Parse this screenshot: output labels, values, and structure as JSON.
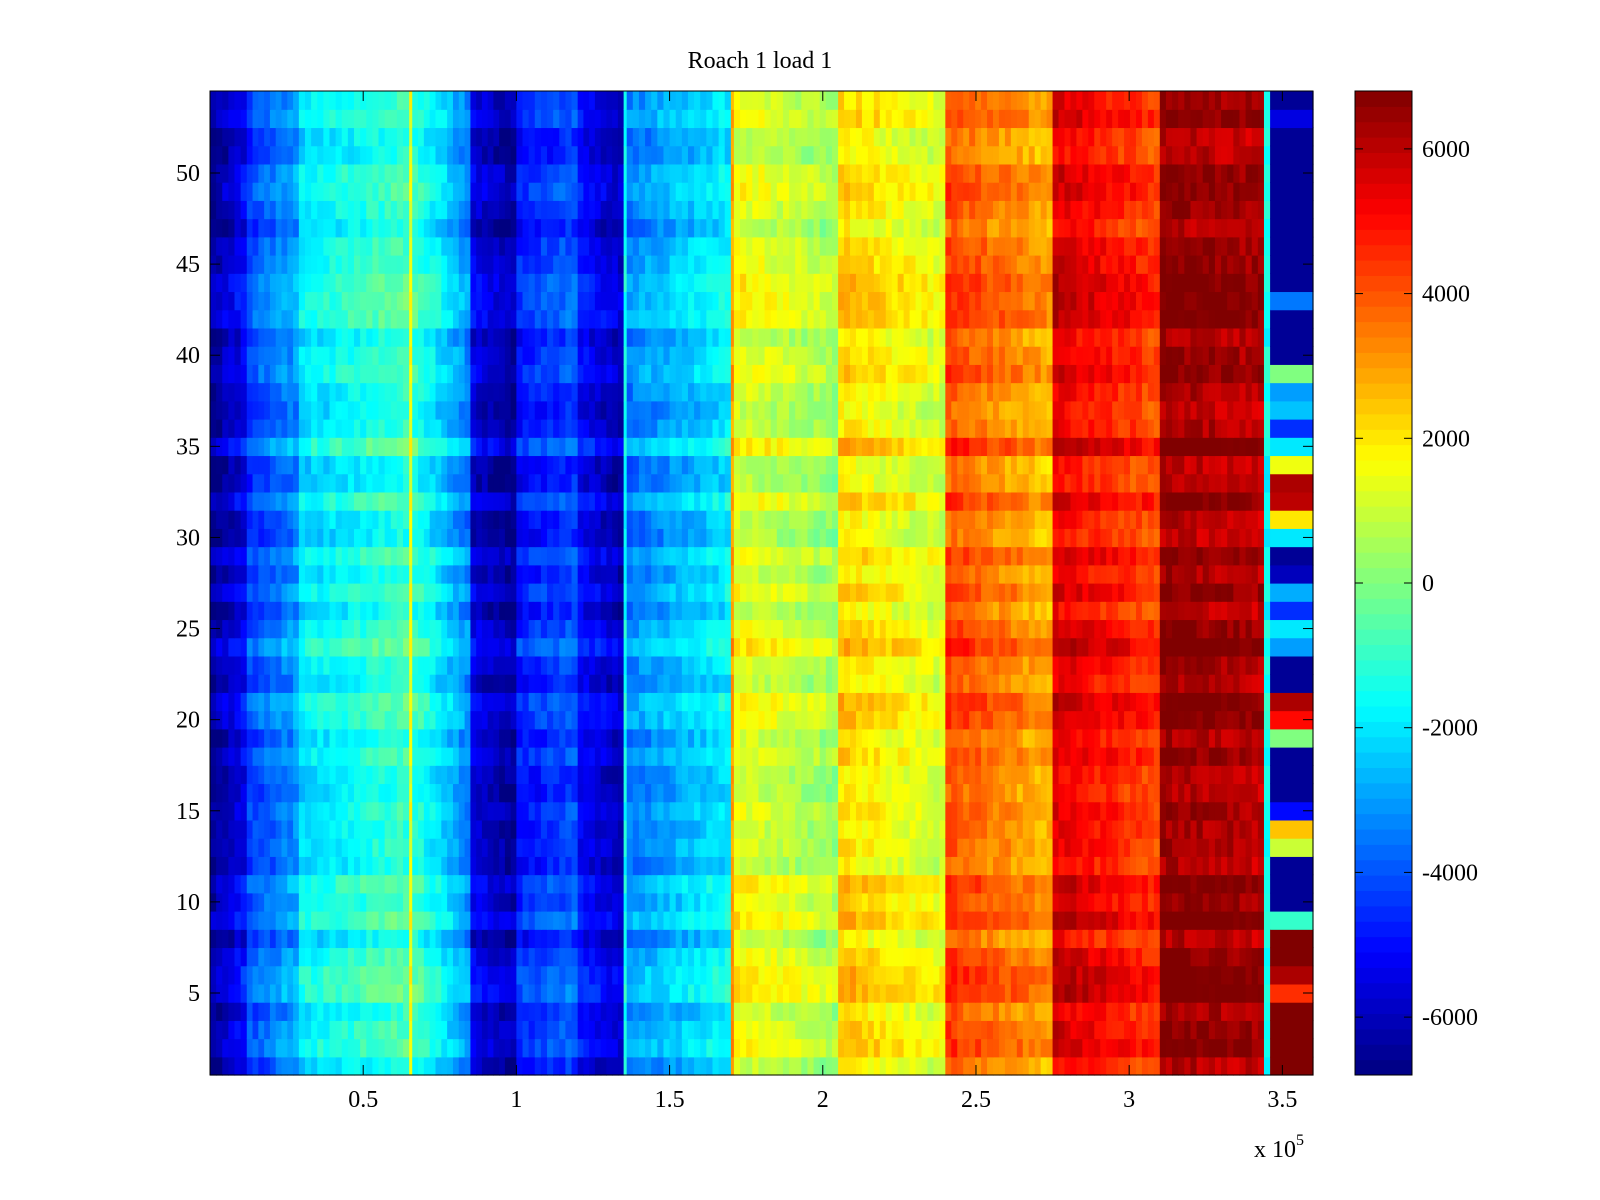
{
  "chart_data": {
    "type": "heatmap",
    "title": "Roach 1 load 1",
    "xlabel": "",
    "ylabel": "",
    "x_multiplier_label": {
      "base": "x 10",
      "exponent": "5"
    },
    "xlim": [
      0,
      3.6
    ],
    "ylim": [
      0.5,
      54.5
    ],
    "x_ticks": [
      0.5,
      1,
      1.5,
      2,
      2.5,
      3,
      3.5
    ],
    "x_tick_labels": [
      "0.5",
      "1",
      "1.5",
      "2",
      "2.5",
      "3",
      "3.5"
    ],
    "y_ticks": [
      5,
      10,
      15,
      20,
      25,
      30,
      35,
      40,
      45,
      50
    ],
    "y_tick_labels": [
      "5",
      "10",
      "15",
      "20",
      "25",
      "30",
      "35",
      "40",
      "45",
      "50"
    ],
    "colorbar": {
      "colormap": "jet",
      "clim": [
        -6800,
        6800
      ],
      "ticks": [
        -6000,
        -4000,
        -2000,
        0,
        2000,
        4000,
        6000
      ],
      "tick_labels": [
        "-6000",
        "-4000",
        "-2000",
        "0",
        "2000",
        "4000",
        "6000"
      ]
    },
    "rows": 54,
    "column_segments": [
      {
        "x_start": 0.0,
        "x_end": 0.12,
        "value_start": -6500,
        "value_end": -5200
      },
      {
        "x_start": 0.12,
        "x_end": 0.29,
        "value_start": -4200,
        "value_end": -3000
      },
      {
        "x_start": 0.29,
        "x_end": 0.65,
        "value_start": -2000,
        "value_end": -800
      },
      {
        "x_start": 0.65,
        "x_end": 0.66,
        "value_start": 1500,
        "value_end": 1500
      },
      {
        "x_start": 0.66,
        "x_end": 0.85,
        "value_start": -1000,
        "value_end": -3200
      },
      {
        "x_start": 0.85,
        "x_end": 1.0,
        "value_start": -5500,
        "value_end": -6300
      },
      {
        "x_start": 1.0,
        "x_end": 1.2,
        "value_start": -4800,
        "value_end": -4000
      },
      {
        "x_start": 1.2,
        "x_end": 1.35,
        "value_start": -5000,
        "value_end": -6000
      },
      {
        "x_start": 1.35,
        "x_end": 1.36,
        "value_start": -1500,
        "value_end": -1500
      },
      {
        "x_start": 1.36,
        "x_end": 1.7,
        "value_start": -3300,
        "value_end": -1800
      },
      {
        "x_start": 1.7,
        "x_end": 1.71,
        "value_start": 3000,
        "value_end": 3000
      },
      {
        "x_start": 1.71,
        "x_end": 2.05,
        "value_start": 1500,
        "value_end": 500
      },
      {
        "x_start": 2.05,
        "x_end": 2.4,
        "value_start": 2300,
        "value_end": 1200
      },
      {
        "x_start": 2.4,
        "x_end": 2.75,
        "value_start": 4200,
        "value_end": 2800
      },
      {
        "x_start": 2.75,
        "x_end": 3.1,
        "value_start": 5600,
        "value_end": 4300
      },
      {
        "x_start": 3.1,
        "x_end": 3.44,
        "value_start": 6600,
        "value_end": 6200
      },
      {
        "x_start": 3.44,
        "x_end": 3.46,
        "value_start": -1500,
        "value_end": -1500
      }
    ],
    "last_column": {
      "x_start": 3.46,
      "x_end": 3.6,
      "values_bottom_to_top": [
        6800,
        6800,
        6800,
        6800,
        4500,
        6200,
        6800,
        6800,
        -1000,
        -6500,
        -6500,
        -6500,
        1000,
        2500,
        -5000,
        -6500,
        -6500,
        -6500,
        0,
        5000,
        6200,
        -6500,
        -6500,
        -3000,
        -2000,
        -4500,
        -2800,
        -6000,
        -6500,
        -2000,
        2000,
        6000,
        6200,
        1500,
        -2000,
        -4500,
        -2500,
        -3000,
        0,
        -6500,
        -6500,
        -6500,
        -3500,
        -6500,
        -6500,
        -6500,
        -6500,
        -6500,
        -6500,
        -6500,
        -6500,
        -6500,
        -5500,
        -6500
      ]
    }
  }
}
